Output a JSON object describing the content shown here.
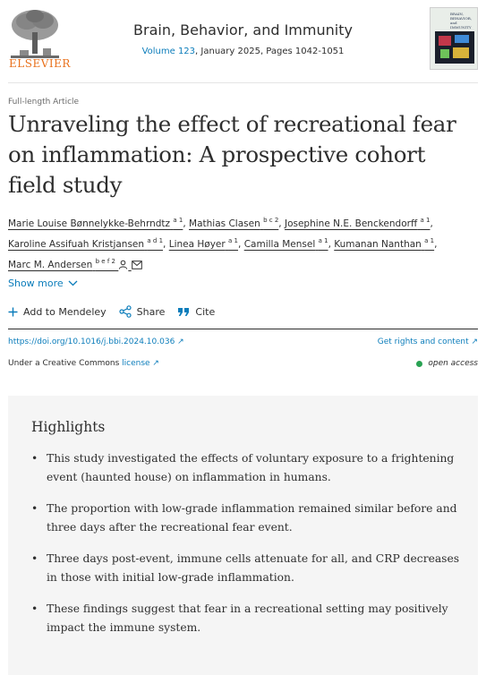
{
  "header": {
    "publisher": "ELSEVIER",
    "journal": "Brain, Behavior, and Immunity",
    "volume_link": "Volume 123",
    "issue_rest": ", January 2025, Pages 1042-1051",
    "cover_title": "BRAIN, BEHAVIOR, and IMMUNITY"
  },
  "article": {
    "type": "Full-length Article",
    "title": "Unraveling the effect of recreational fear on inflammation: A prospective cohort field study"
  },
  "authors": [
    {
      "name": "Marie Louise Bønnelykke-Behrndtz",
      "sup": "a 1",
      "sep": ","
    },
    {
      "name": "Mathias Clasen",
      "sup": "b c 2",
      "sep": ","
    },
    {
      "name": "Josephine N.E. Benckendorff",
      "sup": "a 1",
      "sep": ","
    },
    {
      "name": "Karoline Assifuah Kristjansen",
      "sup": "a d 1",
      "sep": ","
    },
    {
      "name": "Linea Høyer",
      "sup": "a 1",
      "sep": ","
    },
    {
      "name": "Camilla Mensel",
      "sup": "a 1",
      "sep": ","
    },
    {
      "name": "Kumanan Nanthan",
      "sup": "a 1",
      "sep": ","
    },
    {
      "name": "Marc M. Andersen",
      "sup": "b e f 2",
      "sep": ""
    }
  ],
  "show_more": "Show more",
  "actions": {
    "mendeley": "Add to Mendeley",
    "share": "Share",
    "cite": "Cite"
  },
  "links": {
    "doi": "https://doi.org/10.1016/j.bbi.2024.10.036 ↗",
    "rights": "Get rights and content ↗",
    "license_prefix": "Under a Creative Commons ",
    "license_link": "license ↗",
    "open_access": "open access"
  },
  "highlights": {
    "title": "Highlights",
    "items": [
      "This study investigated the effects of voluntary exposure to a frightening event (haunted house) on inflammation in humans.",
      "The proportion with low-grade inflammation remained similar before and three days after the recreational fear event.",
      "Three days post-event, immune cells attenuate for all, and CRP decreases in those with initial low-grade inflammation.",
      "These findings suggest that fear in a recreational setting may positively impact the immune system."
    ]
  },
  "colors": {
    "link": "#0c7dbb",
    "publisher_orange": "#e9711c",
    "open_access_green": "#29a253",
    "highlights_bg": "#f5f5f5"
  },
  "icons": [
    "elsevier-tree-logo",
    "chevron-down-icon",
    "plus-icon",
    "share-icon",
    "quote-icon",
    "person-icon",
    "envelope-icon",
    "open-access-dot-icon"
  ]
}
